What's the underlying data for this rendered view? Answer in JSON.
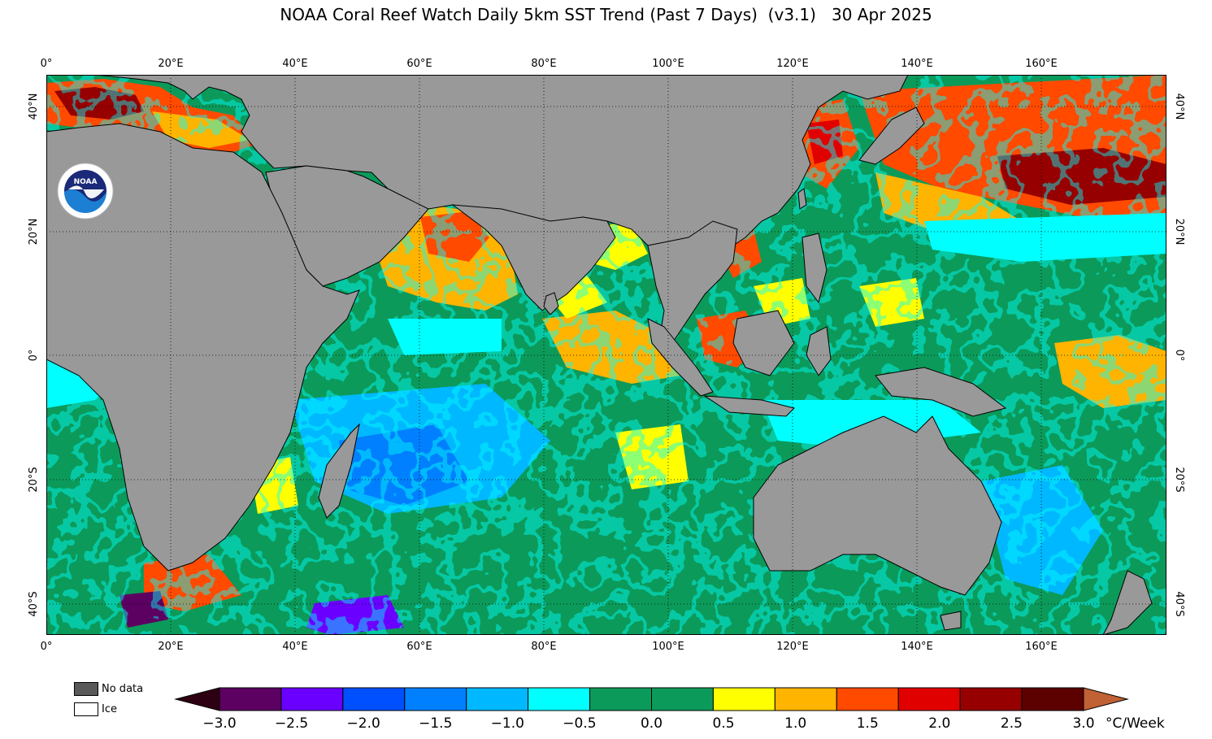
{
  "title": "NOAA Coral Reef Watch Daily 5km SST Trend (Past 7 Days)  (v3.1)   30 Apr 2025",
  "x_ticks": [
    "0°",
    "20°E",
    "40°E",
    "60°E",
    "80°E",
    "100°E",
    "120°E",
    "140°E",
    "160°E"
  ],
  "y_ticks_left": [
    "40°N",
    "20°N",
    "0°",
    "20°S",
    "40°S"
  ],
  "y_ticks_right": [
    "40°N",
    "20°N",
    "0°",
    "20°S",
    "40°S"
  ],
  "logo_text": "NOAA",
  "legend_keys": [
    {
      "label": "No data",
      "color": "#595959"
    },
    {
      "label": "Ice",
      "color": "#ffffff"
    }
  ],
  "colorbar": {
    "units": "°C/Week",
    "tick_labels": [
      "−3.0",
      "−2.5",
      "−2.0",
      "−1.5",
      "−1.0",
      "−0.5",
      "0.0",
      "0.5",
      "1.0",
      "1.5",
      "2.0",
      "2.5",
      "3.0"
    ],
    "under_color": "#2d0012",
    "over_color": "#c06035",
    "colors": [
      "#5c0062",
      "#6a00ff",
      "#0050ff",
      "#0080ff",
      "#00b8ff",
      "#00ffff",
      "#0c9a5a",
      "#0c9a5a",
      "#ffff00",
      "#ffb400",
      "#ff4a00",
      "#e00000",
      "#960000",
      "#5c0000"
    ]
  },
  "palette": {
    "land": "#999999",
    "coast": "#000000",
    "graticule": "#000000"
  }
}
